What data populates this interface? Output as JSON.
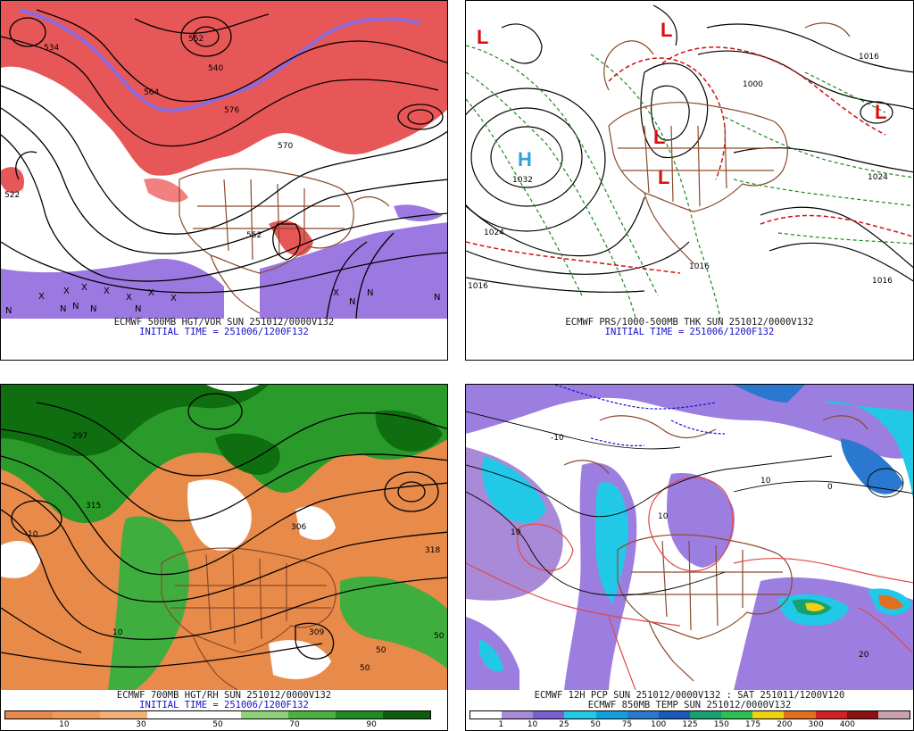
{
  "panels": {
    "top_left": {
      "caption_line1": "ECMWF 500MB HGT/VOR SUN 251012/0000V132",
      "caption_line2": "INITIAL TIME = 251006/1200F132",
      "contour_labels": [
        "534",
        "540",
        "552",
        "576",
        "570",
        "564",
        "552",
        "522"
      ],
      "markers": [
        "X",
        "X",
        "X",
        "X",
        "X",
        "X",
        "X",
        "X",
        "N",
        "N",
        "N",
        "N",
        "N",
        "N",
        "N",
        "N"
      ]
    },
    "top_right": {
      "caption_line1": "ECMWF PRS/1000-500MB THK SUN 251012/0000V132",
      "caption_line2": "INITIAL TIME = 251006/1200F132",
      "high_label": "H",
      "high_value": "1032",
      "low_label": "L",
      "contour_labels": [
        "1024",
        "1016",
        "1016",
        "1024",
        "1016",
        "1000",
        "1016"
      ]
    },
    "bottom_left": {
      "caption_line1": "ECMWF 700MB HGT/RH SUN 251012/0000V132",
      "caption_line2": "INITIAL TIME = 251006/1200F132",
      "contour_labels": [
        "297",
        "315",
        "306",
        "318",
        "309",
        "10",
        "10",
        "50",
        "50",
        "50"
      ],
      "colorbar_ticks": [
        "10",
        "30",
        "50",
        "70",
        "90"
      ],
      "colorbar_colors": [
        "#e88a4a",
        "#f09a55",
        "#f5b078",
        "#ffffff",
        "#ffffff",
        "#8cd27a",
        "#4cb040",
        "#1f8a1f",
        "#0c5e0c"
      ]
    },
    "bottom_right": {
      "caption_line1": "ECMWF 12H PCP SUN 251012/0000V132 : SAT 251011/1200V120",
      "caption_line2": "ECMWF 850MB TEMP SUN 251012/0000V132",
      "contour_labels": [
        "10",
        "-10",
        "10",
        "0",
        "20",
        "10"
      ],
      "colorbar_ticks": [
        "1",
        "10",
        "25",
        "50",
        "75",
        "100",
        "125",
        "150",
        "175",
        "200",
        "300",
        "400"
      ],
      "colorbar_colors": [
        "#ffffff",
        "#a98ad8",
        "#7b5fd0",
        "#22c8e8",
        "#10a0e0",
        "#2a78d0",
        "#1a5ab8",
        "#17a070",
        "#2dc050",
        "#f0d010",
        "#e07020",
        "#d02020",
        "#8b1010",
        "#c8a0b0"
      ]
    }
  },
  "colors": {
    "geography": "#8b4a2b",
    "vorticity_pos": "#e02020",
    "vorticity_neg": "#7a50d8",
    "thickness": "#1a8a1a",
    "thickness_warm": "#d01010",
    "rh_dry": "#e88a4a",
    "rh_moist": "#2a9a2a",
    "pcp_light": "#9c7ee0",
    "pcp_mod": "#20c0e0"
  }
}
